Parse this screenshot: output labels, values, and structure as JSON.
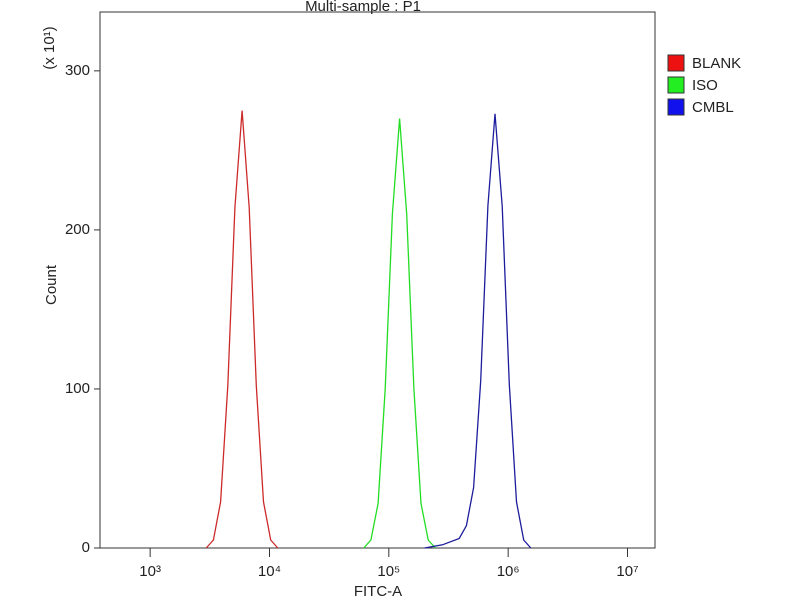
{
  "chart_data": {
    "type": "line",
    "title": "Multi-sample : P1",
    "x_label": "FITC-A",
    "y_label": "Count",
    "y_multiplier": "(x 10¹)",
    "log_x": true,
    "legend": "right",
    "xlim": [
      380,
      17000000
    ],
    "ylim": [
      0,
      337
    ],
    "xticks": [
      {
        "value": 1000,
        "label": "10³"
      },
      {
        "value": 10000,
        "label": "10⁴"
      },
      {
        "value": 100000,
        "label": "10⁵"
      },
      {
        "value": 1000000,
        "label": "10⁶"
      },
      {
        "value": 10000000,
        "label": "10⁷"
      }
    ],
    "yticks": [
      0,
      100,
      200,
      300
    ],
    "series": [
      {
        "name": "BLANK",
        "color": "#cc2a2a",
        "legend_color": "#ee1111",
        "x": [
          2950,
          3390,
          3890,
          4470,
          5130,
          5890,
          6760,
          7760,
          8910,
          10230,
          11750
        ],
        "values": [
          0,
          5,
          29,
          102,
          214,
          275,
          214,
          102,
          29,
          5,
          0
        ]
      },
      {
        "name": "ISO",
        "color": "#22dd22",
        "legend_color": "#22ee22",
        "x": [
          61700,
          70800,
          81300,
          93300,
          107200,
          123000,
          141300,
          162200,
          186200,
          213800,
          245500
        ],
        "values": [
          0,
          5,
          28,
          100,
          210,
          270,
          210,
          100,
          28,
          5,
          0
        ]
      },
      {
        "name": "CMBL",
        "color": "#1c1c9c",
        "legend_color": "#1111ee",
        "x": [
          199500,
          281800,
          389000,
          446700,
          512900,
          588800,
          676100,
          776200,
          891300,
          1023000,
          1175000,
          1349000,
          1549000
        ],
        "values": [
          0,
          2,
          6,
          14,
          38,
          105,
          215,
          273,
          215,
          103,
          29,
          5,
          0
        ]
      }
    ]
  }
}
